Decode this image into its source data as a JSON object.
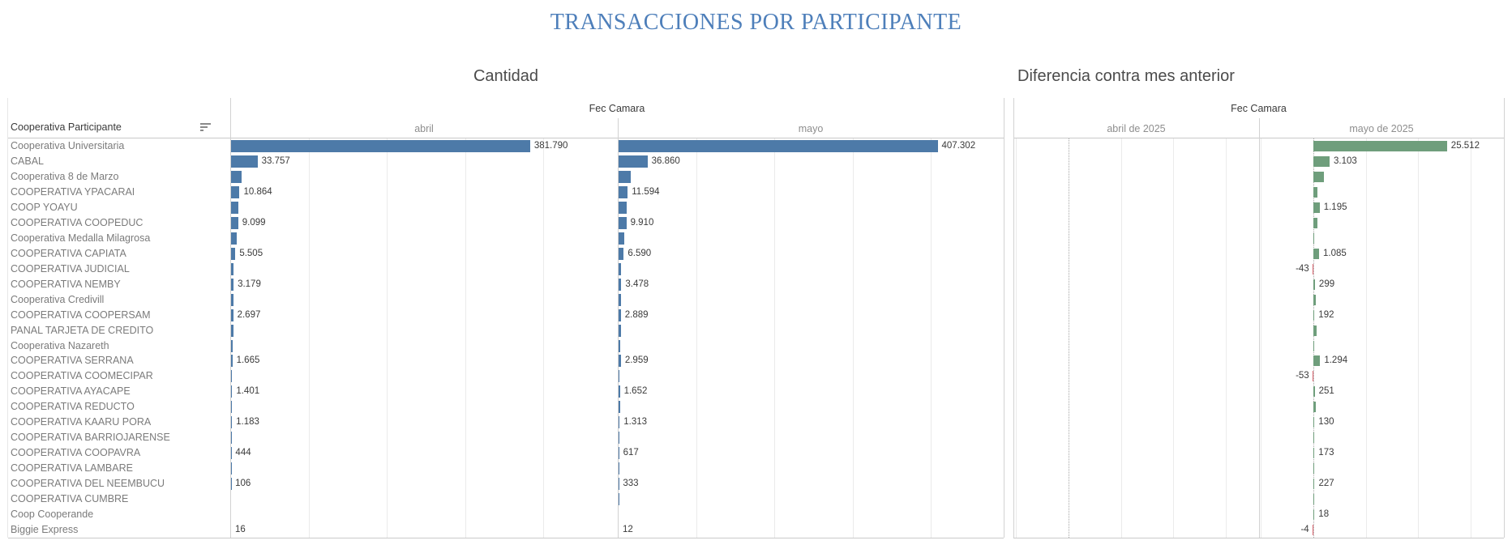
{
  "page_title": "TRANSACCIONES POR PARTICIPANTE",
  "row_header": {
    "title": "Cooperativa Participante",
    "sort_icon": "sort-descending-icon"
  },
  "colors": {
    "title_blue": "#4e7fba",
    "bar_blue": "#4d7aa8",
    "diff_positive_green": "#6f9e7c",
    "diff_negative_red": "#d9646e",
    "gridline": "#ebebeb",
    "row_label_grey": "#7b7b7b"
  },
  "chart_data": [
    {
      "type": "bar",
      "orientation": "horizontal",
      "title": "Cantidad",
      "col_group": "Fec Camara",
      "columns": [
        "abril",
        "mayo"
      ],
      "xlim": [
        0,
        494000
      ],
      "gridline_step": 100000,
      "legend": "none",
      "categories": [
        "Cooperativa Universitaria",
        "CABAL",
        "Cooperativa 8 de Marzo",
        "COOPERATIVA YPACARAI",
        "COOP YOAYU",
        "COOPERATIVA COOPEDUC",
        "Cooperativa Medalla Milagrosa",
        "COOPERATIVA CAPIATA",
        "COOPERATIVA JUDICIAL",
        "COOPERATIVA NEMBY",
        "Cooperativa Credivill",
        "COOPERATIVA COOPERSAM",
        "PANAL TARJETA DE CREDITO",
        "Cooperativa Nazareth",
        "COOPERATIVA SERRANA",
        "COOPERATIVA COOMECIPAR",
        "COOPERATIVA AYACAPE",
        "COOPERATIVA REDUCTO",
        "COOPERATIVA KAARU PORA",
        "COOPERATIVA BARRIOJARENSE",
        "COOPERATIVA COOPAVRA",
        "COOPERATIVA LAMBARE",
        "COOPERATIVA DEL NEEMBUCU",
        "COOPERATIVA CUMBRE",
        "Coop Cooperande",
        "Biggie Express"
      ],
      "series": [
        {
          "name": "abril",
          "values": [
            381790,
            33757,
            13400,
            10864,
            9600,
            9099,
            7500,
            5505,
            3500,
            3179,
            2900,
            2697,
            2600,
            2000,
            1665,
            1550,
            1401,
            1300,
            1183,
            700,
            444,
            250,
            106,
            60,
            30,
            16
          ]
        },
        {
          "name": "mayo",
          "values": [
            407302,
            36860,
            15400,
            11594,
            10795,
            9910,
            7650,
            6590,
            3457,
            3478,
            3320,
            2889,
            3270,
            2150,
            2959,
            1497,
            1652,
            1720,
            1313,
            850,
            617,
            400,
            333,
            130,
            48,
            12
          ]
        }
      ],
      "value_labels": {
        "abril": [
          "381.790",
          "33.757",
          null,
          "10.864",
          null,
          "9.099",
          null,
          "5.505",
          null,
          "3.179",
          null,
          "2.697",
          null,
          null,
          "1.665",
          null,
          "1.401",
          null,
          "1.183",
          null,
          "444",
          null,
          "106",
          null,
          null,
          "16"
        ],
        "mayo": [
          "407.302",
          "36.860",
          null,
          "11.594",
          null,
          "9.910",
          null,
          "6.590",
          null,
          "3.478",
          null,
          "2.889",
          null,
          null,
          "2.959",
          null,
          "1.652",
          null,
          "1.313",
          null,
          "617",
          null,
          "333",
          null,
          null,
          "12"
        ]
      }
    },
    {
      "type": "bar",
      "orientation": "horizontal",
      "title": "Diferencia contra mes anterior",
      "col_group": "Fec Camara",
      "columns": [
        "abril de 2025",
        "mayo de 2025"
      ],
      "xlim": [
        -10500,
        36500
      ],
      "gridline_step": 10000,
      "legend": "none",
      "categories": [
        "Cooperativa Universitaria",
        "CABAL",
        "Cooperativa 8 de Marzo",
        "COOPERATIVA YPACARAI",
        "COOP YOAYU",
        "COOPERATIVA COOPEDUC",
        "Cooperativa Medalla Milagrosa",
        "COOPERATIVA CAPIATA",
        "COOPERATIVA JUDICIAL",
        "COOPERATIVA NEMBY",
        "Cooperativa Credivill",
        "COOPERATIVA COOPERSAM",
        "PANAL TARJETA DE CREDITO",
        "Cooperativa Nazareth",
        "COOPERATIVA SERRANA",
        "COOPERATIVA COOMECIPAR",
        "COOPERATIVA AYACAPE",
        "COOPERATIVA REDUCTO",
        "COOPERATIVA KAARU PORA",
        "COOPERATIVA BARRIOJARENSE",
        "COOPERATIVA COOPAVRA",
        "COOPERATIVA LAMBARE",
        "COOPERATIVA DEL NEEMBUCU",
        "COOPERATIVA CUMBRE",
        "Coop Cooperande",
        "Biggie Express"
      ],
      "series": [
        {
          "name": "abril de 2025",
          "values": [
            null,
            null,
            null,
            null,
            null,
            null,
            null,
            null,
            null,
            null,
            null,
            null,
            null,
            null,
            null,
            null,
            null,
            null,
            null,
            null,
            null,
            null,
            null,
            null,
            null,
            null
          ]
        },
        {
          "name": "mayo de 2025",
          "values": [
            25512,
            3103,
            2000,
            730,
            1195,
            811,
            150,
            1085,
            -43,
            299,
            420,
            192,
            670,
            150,
            1294,
            -53,
            251,
            420,
            130,
            150,
            173,
            150,
            227,
            70,
            18,
            -4
          ]
        }
      ],
      "value_labels": {
        "mayo de 2025": [
          "25.512",
          "3.103",
          null,
          null,
          "1.195",
          null,
          null,
          "1.085",
          "-43",
          "299",
          null,
          "192",
          null,
          null,
          "1.294",
          "-53",
          "251",
          null,
          "130",
          null,
          "173",
          null,
          "227",
          null,
          "18",
          "-4"
        ]
      }
    }
  ]
}
